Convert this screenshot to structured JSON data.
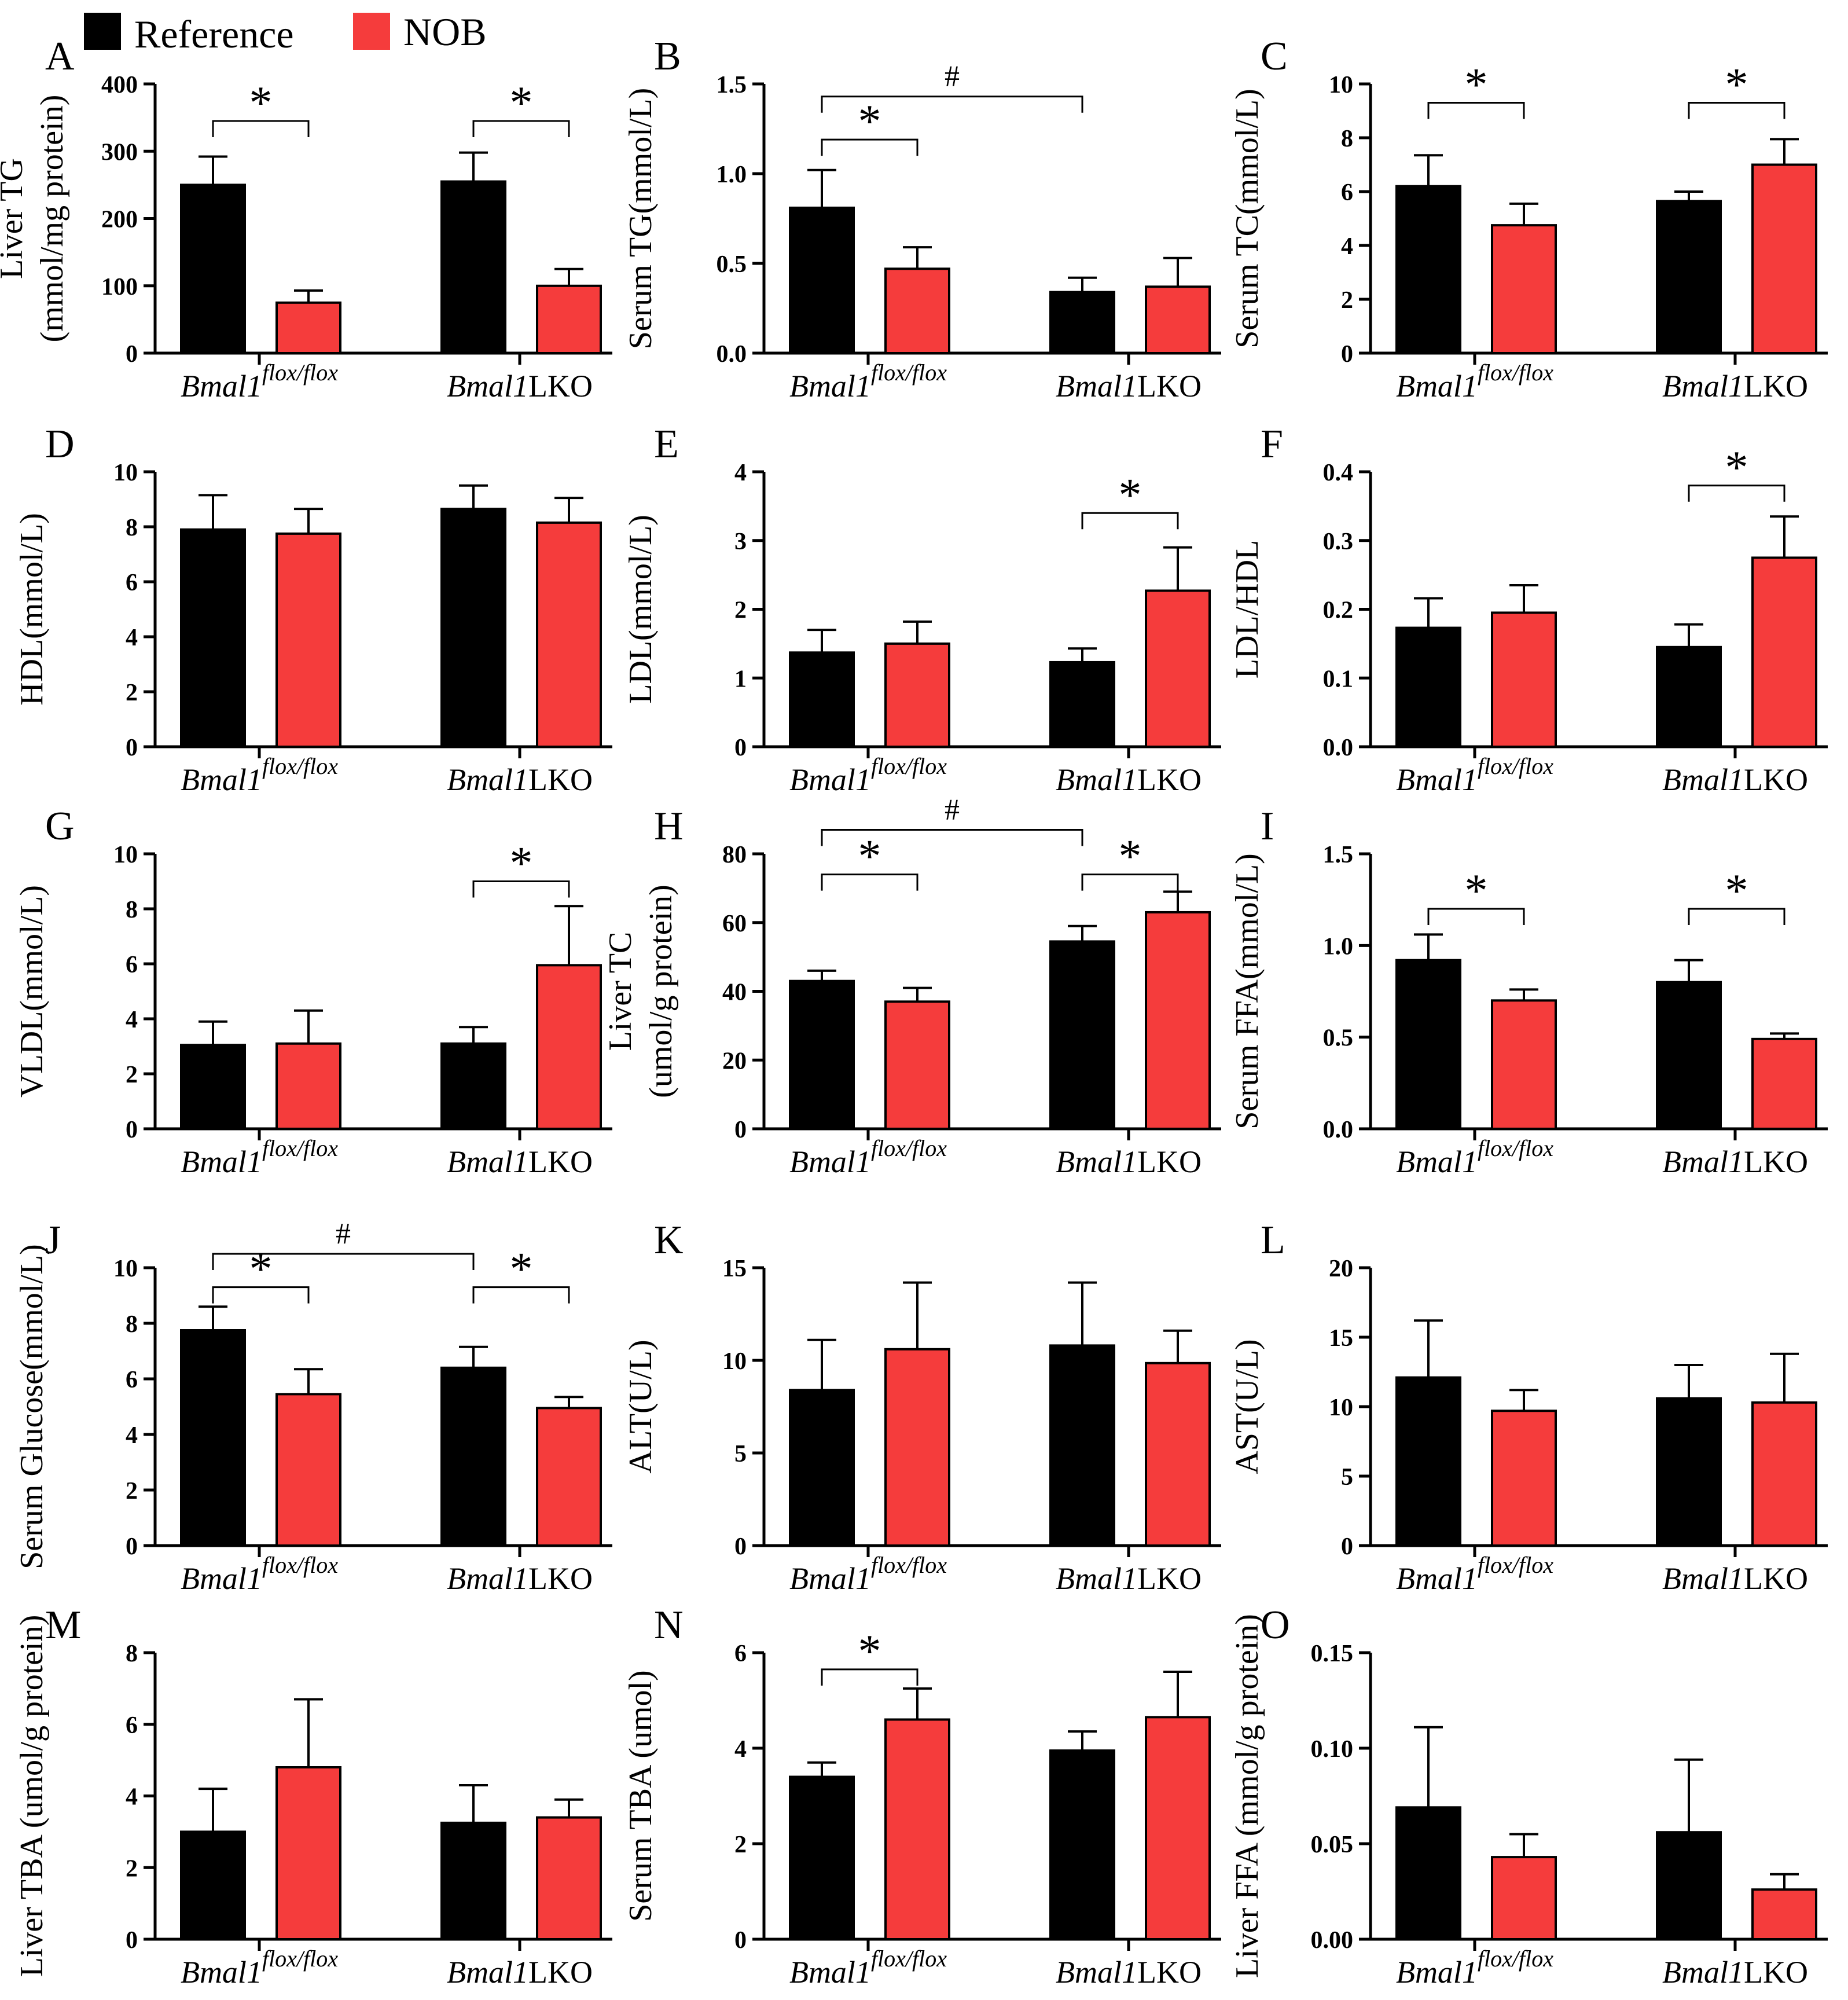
{
  "legend": {
    "items": [
      {
        "label": "Reference",
        "color": "#000000"
      },
      {
        "label": "NOB",
        "color": "#f53c3c"
      }
    ]
  },
  "colors": {
    "reference": "#000000",
    "nob": "#f53c3c",
    "axis": "#000000"
  },
  "chart_data": [
    {
      "panel": "A",
      "type": "bar",
      "ylabel": [
        "Liver TG",
        "(mmol/mg protein)"
      ],
      "yticks": [
        0,
        100,
        200,
        300,
        400
      ],
      "ylim": [
        0,
        400
      ],
      "yfmt": 0,
      "categories": [
        {
          "base": "Bmal1",
          "sup": "flox/flox"
        },
        {
          "base": "Bmal1",
          "suffix": "LKO"
        }
      ],
      "series": [
        {
          "name": "Reference",
          "values": [
            250,
            255
          ],
          "errors": [
            42,
            43
          ]
        },
        {
          "name": "NOB",
          "values": [
            75,
            100
          ],
          "errors": [
            18,
            25
          ]
        }
      ],
      "annotations": [
        {
          "from": 0,
          "to": 1,
          "label": "*",
          "y": 345
        },
        {
          "from": 2,
          "to": 3,
          "label": "*",
          "y": 345
        }
      ]
    },
    {
      "panel": "B",
      "type": "bar",
      "ylabel": [
        "Serum TG(mmol/L)"
      ],
      "yticks": [
        0.0,
        0.5,
        1.0,
        1.5
      ],
      "ylim": [
        0,
        1.5
      ],
      "yfmt": 1,
      "categories": [
        {
          "base": "Bmal1",
          "sup": "flox/flox"
        },
        {
          "base": "Bmal1",
          "suffix": "LKO"
        }
      ],
      "series": [
        {
          "name": "Reference",
          "values": [
            0.81,
            0.34
          ],
          "errors": [
            0.21,
            0.08
          ]
        },
        {
          "name": "NOB",
          "values": [
            0.47,
            0.37
          ],
          "errors": [
            0.12,
            0.16
          ]
        }
      ],
      "annotations": [
        {
          "from": 0,
          "to": 1,
          "label": "*",
          "y": 1.19
        },
        {
          "from": 0,
          "to": 2,
          "label": "#",
          "y": 1.43
        }
      ]
    },
    {
      "panel": "C",
      "type": "bar",
      "ylabel": [
        "Serum TC(mmol/L)"
      ],
      "yticks": [
        0,
        2,
        4,
        6,
        8,
        10
      ],
      "ylim": [
        0,
        10
      ],
      "yfmt": 0,
      "categories": [
        {
          "base": "Bmal1",
          "sup": "flox/flox"
        },
        {
          "base": "Bmal1",
          "suffix": "LKO"
        }
      ],
      "series": [
        {
          "name": "Reference",
          "values": [
            6.2,
            5.65
          ],
          "errors": [
            1.15,
            0.35
          ]
        },
        {
          "name": "NOB",
          "values": [
            4.75,
            7.0
          ],
          "errors": [
            0.8,
            0.95
          ]
        }
      ],
      "annotations": [
        {
          "from": 0,
          "to": 1,
          "label": "*",
          "y": 9.3
        },
        {
          "from": 2,
          "to": 3,
          "label": "*",
          "y": 9.3
        }
      ]
    },
    {
      "panel": "D",
      "type": "bar",
      "ylabel": [
        "HDL(mmol/L)"
      ],
      "yticks": [
        0,
        2,
        4,
        6,
        8,
        10
      ],
      "ylim": [
        0,
        10
      ],
      "yfmt": 0,
      "categories": [
        {
          "base": "Bmal1",
          "sup": "flox/flox"
        },
        {
          "base": "Bmal1",
          "suffix": "LKO"
        }
      ],
      "series": [
        {
          "name": "Reference",
          "values": [
            7.9,
            8.65
          ],
          "errors": [
            1.25,
            0.85
          ]
        },
        {
          "name": "NOB",
          "values": [
            7.75,
            8.15
          ],
          "errors": [
            0.9,
            0.9
          ]
        }
      ],
      "annotations": []
    },
    {
      "panel": "E",
      "type": "bar",
      "ylabel": [
        "LDL(mmol/L)"
      ],
      "yticks": [
        0,
        1,
        2,
        3,
        4
      ],
      "ylim": [
        0,
        4
      ],
      "yfmt": 0,
      "categories": [
        {
          "base": "Bmal1",
          "sup": "flox/flox"
        },
        {
          "base": "Bmal1",
          "suffix": "LKO"
        }
      ],
      "series": [
        {
          "name": "Reference",
          "values": [
            1.37,
            1.23
          ],
          "errors": [
            0.33,
            0.2
          ]
        },
        {
          "name": "NOB",
          "values": [
            1.5,
            2.27
          ],
          "errors": [
            0.32,
            0.63
          ]
        }
      ],
      "annotations": [
        {
          "from": 2,
          "to": 3,
          "label": "*",
          "y": 3.4
        }
      ]
    },
    {
      "panel": "F",
      "type": "bar",
      "ylabel": [
        "LDL/HDL"
      ],
      "yticks": [
        0.0,
        0.1,
        0.2,
        0.3,
        0.4
      ],
      "ylim": [
        0,
        0.4
      ],
      "yfmt": 1,
      "categories": [
        {
          "base": "Bmal1",
          "sup": "flox/flox"
        },
        {
          "base": "Bmal1",
          "suffix": "LKO"
        }
      ],
      "series": [
        {
          "name": "Reference",
          "values": [
            0.173,
            0.145
          ],
          "errors": [
            0.043,
            0.033
          ]
        },
        {
          "name": "NOB",
          "values": [
            0.195,
            0.275
          ],
          "errors": [
            0.04,
            0.06
          ]
        }
      ],
      "annotations": [
        {
          "from": 2,
          "to": 3,
          "label": "*",
          "y": 0.38
        }
      ]
    },
    {
      "panel": "G",
      "type": "bar",
      "ylabel": [
        "VLDL(mmol/L)"
      ],
      "yticks": [
        0,
        2,
        4,
        6,
        8,
        10
      ],
      "ylim": [
        0,
        10
      ],
      "yfmt": 0,
      "categories": [
        {
          "base": "Bmal1",
          "sup": "flox/flox"
        },
        {
          "base": "Bmal1",
          "suffix": "LKO"
        }
      ],
      "series": [
        {
          "name": "Reference",
          "values": [
            3.05,
            3.1
          ],
          "errors": [
            0.85,
            0.6
          ]
        },
        {
          "name": "NOB",
          "values": [
            3.1,
            5.95
          ],
          "errors": [
            1.2,
            2.15
          ]
        }
      ],
      "annotations": [
        {
          "from": 2,
          "to": 3,
          "label": "*",
          "y": 9.0
        }
      ]
    },
    {
      "panel": "H",
      "type": "bar",
      "ylabel": [
        "Liver TC",
        "(umol/g protein)"
      ],
      "yticks": [
        0,
        20,
        40,
        60,
        80
      ],
      "ylim": [
        0,
        80
      ],
      "yfmt": 0,
      "categories": [
        {
          "base": "Bmal1",
          "sup": "flox/flox"
        },
        {
          "base": "Bmal1",
          "suffix": "LKO"
        }
      ],
      "series": [
        {
          "name": "Reference",
          "values": [
            43,
            54.5
          ],
          "errors": [
            3,
            4.5
          ]
        },
        {
          "name": "NOB",
          "values": [
            37,
            63
          ],
          "errors": [
            4,
            6
          ]
        }
      ],
      "annotations": [
        {
          "from": 0,
          "to": 1,
          "label": "*",
          "y": 74
        },
        {
          "from": 2,
          "to": 3,
          "label": "*",
          "y": 74
        },
        {
          "from": 0,
          "to": 2,
          "label": "#",
          "y": 87
        }
      ]
    },
    {
      "panel": "I",
      "type": "bar",
      "ylabel": [
        "Serum FFA(mmol/L)"
      ],
      "yticks": [
        0.0,
        0.5,
        1.0,
        1.5
      ],
      "ylim": [
        0,
        1.5
      ],
      "yfmt": 1,
      "categories": [
        {
          "base": "Bmal1",
          "sup": "flox/flox"
        },
        {
          "base": "Bmal1",
          "suffix": "LKO"
        }
      ],
      "series": [
        {
          "name": "Reference",
          "values": [
            0.92,
            0.8
          ],
          "errors": [
            0.14,
            0.12
          ]
        },
        {
          "name": "NOB",
          "values": [
            0.7,
            0.49
          ],
          "errors": [
            0.06,
            0.03
          ]
        }
      ],
      "annotations": [
        {
          "from": 0,
          "to": 1,
          "label": "*",
          "y": 1.2
        },
        {
          "from": 2,
          "to": 3,
          "label": "*",
          "y": 1.2
        }
      ]
    },
    {
      "panel": "J",
      "type": "bar",
      "ylabel": [
        "Serum Glucose(mmol/L)"
      ],
      "yticks": [
        0,
        2,
        4,
        6,
        8,
        10
      ],
      "ylim": [
        0,
        10
      ],
      "yfmt": 0,
      "categories": [
        {
          "base": "Bmal1",
          "sup": "flox/flox"
        },
        {
          "base": "Bmal1",
          "suffix": "LKO"
        }
      ],
      "series": [
        {
          "name": "Reference",
          "values": [
            7.75,
            6.4
          ],
          "errors": [
            0.85,
            0.75
          ]
        },
        {
          "name": "NOB",
          "values": [
            5.45,
            4.95
          ],
          "errors": [
            0.9,
            0.4
          ]
        }
      ],
      "annotations": [
        {
          "from": 0,
          "to": 1,
          "label": "*",
          "y": 9.3
        },
        {
          "from": 2,
          "to": 3,
          "label": "*",
          "y": 9.3
        },
        {
          "from": 0,
          "to": 2,
          "label": "#",
          "y": 10.5
        }
      ]
    },
    {
      "panel": "K",
      "type": "bar",
      "ylabel": [
        "ALT(U/L)"
      ],
      "yticks": [
        0,
        5,
        10,
        15
      ],
      "ylim": [
        0,
        15
      ],
      "yfmt": 0,
      "categories": [
        {
          "base": "Bmal1",
          "sup": "flox/flox"
        },
        {
          "base": "Bmal1",
          "suffix": "LKO"
        }
      ],
      "series": [
        {
          "name": "Reference",
          "values": [
            8.4,
            10.8
          ],
          "errors": [
            2.7,
            3.4
          ]
        },
        {
          "name": "NOB",
          "values": [
            10.6,
            9.85
          ],
          "errors": [
            3.6,
            1.75
          ]
        }
      ],
      "annotations": []
    },
    {
      "panel": "L",
      "type": "bar",
      "ylabel": [
        "AST(U/L)"
      ],
      "yticks": [
        0,
        5,
        10,
        15,
        20
      ],
      "ylim": [
        0,
        20
      ],
      "yfmt": 0,
      "categories": [
        {
          "base": "Bmal1",
          "sup": "flox/flox"
        },
        {
          "base": "Bmal1",
          "suffix": "LKO"
        }
      ],
      "series": [
        {
          "name": "Reference",
          "values": [
            12.1,
            10.6
          ],
          "errors": [
            4.1,
            2.4
          ]
        },
        {
          "name": "NOB",
          "values": [
            9.7,
            10.3
          ],
          "errors": [
            1.5,
            3.5
          ]
        }
      ],
      "annotations": []
    },
    {
      "panel": "M",
      "type": "bar",
      "ylabel": [
        "Liver TBA (umol/g protein)"
      ],
      "yticks": [
        0,
        2,
        4,
        6,
        8
      ],
      "ylim": [
        0,
        8
      ],
      "yfmt": 0,
      "categories": [
        {
          "base": "Bmal1",
          "sup": "flox/flox"
        },
        {
          "base": "Bmal1",
          "suffix": "LKO"
        }
      ],
      "series": [
        {
          "name": "Reference",
          "values": [
            3.0,
            3.25
          ],
          "errors": [
            1.2,
            1.05
          ]
        },
        {
          "name": "NOB",
          "values": [
            4.8,
            3.4
          ],
          "errors": [
            1.9,
            0.5
          ]
        }
      ],
      "annotations": []
    },
    {
      "panel": "N",
      "type": "bar",
      "ylabel": [
        "Serum TBA (umol)"
      ],
      "yticks": [
        0,
        2,
        4,
        6
      ],
      "ylim": [
        0,
        6
      ],
      "yfmt": 0,
      "categories": [
        {
          "base": "Bmal1",
          "sup": "flox/flox"
        },
        {
          "base": "Bmal1",
          "suffix": "LKO"
        }
      ],
      "series": [
        {
          "name": "Reference",
          "values": [
            3.4,
            3.95
          ],
          "errors": [
            0.3,
            0.4
          ]
        },
        {
          "name": "NOB",
          "values": [
            4.6,
            4.65
          ],
          "errors": [
            0.65,
            0.95
          ]
        }
      ],
      "annotations": [
        {
          "from": 0,
          "to": 1,
          "label": "*",
          "y": 5.65
        }
      ]
    },
    {
      "panel": "O",
      "type": "bar",
      "ylabel": [
        "Liver FFA (mmol/g protein)"
      ],
      "yticks": [
        0.0,
        0.05,
        0.1,
        0.15
      ],
      "ylim": [
        0,
        0.15
      ],
      "yfmt": 2,
      "categories": [
        {
          "base": "Bmal1",
          "sup": "flox/flox"
        },
        {
          "base": "Bmal1",
          "suffix": "LKO"
        }
      ],
      "series": [
        {
          "name": "Reference",
          "values": [
            0.069,
            0.056
          ],
          "errors": [
            0.042,
            0.038
          ]
        },
        {
          "name": "NOB",
          "values": [
            0.043,
            0.026
          ],
          "errors": [
            0.012,
            0.008
          ]
        }
      ],
      "annotations": []
    }
  ]
}
